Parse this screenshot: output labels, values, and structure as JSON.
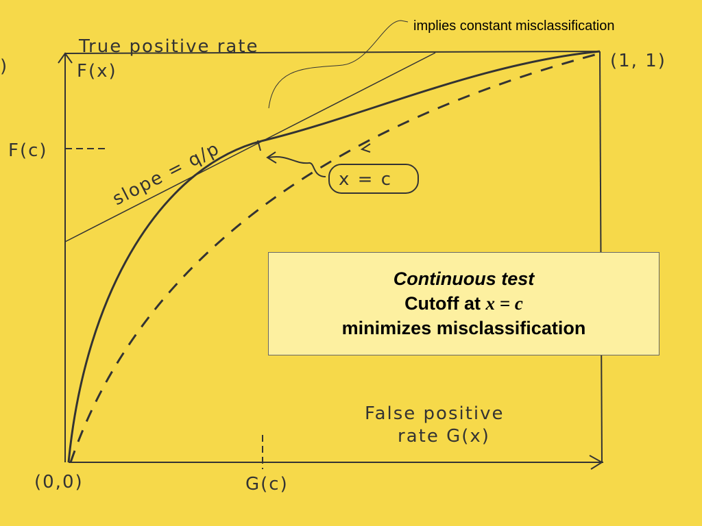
{
  "annotation": "implies constant misclassification",
  "fragment": ")",
  "axes": {
    "y_label": "True positive rate",
    "y_function": "F(x)",
    "x_label_line1": "False positive",
    "x_label_line2": "rate G(x)",
    "origin": "(0,0)",
    "corner": "(1, 1)"
  },
  "marks": {
    "y_cutoff": "F(c)",
    "x_cutoff": "G(c)"
  },
  "tangent_label": "slope = q/p",
  "point_label": "x = c",
  "callout": {
    "title": "Continuous test",
    "line2_prefix": "Cutoff at",
    "line2_math": "x = c",
    "line3": "minimizes misclassification"
  }
}
